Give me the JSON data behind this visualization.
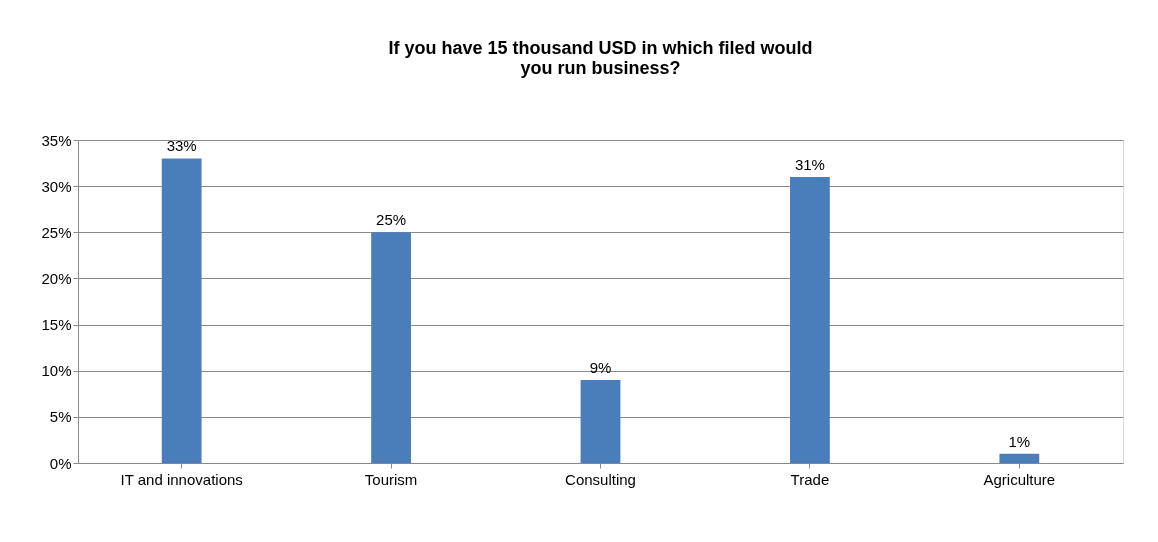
{
  "chart_data": {
    "type": "bar",
    "title": [
      "If you have 15 thousand USD in which filed would",
      "you run business?"
    ],
    "categories": [
      "IT and innovations",
      "Tourism",
      "Consulting",
      "Trade",
      "Agriculture"
    ],
    "values": [
      33,
      25,
      9,
      31,
      1
    ],
    "value_labels": [
      "33%",
      "25%",
      "9%",
      "31%",
      "1%"
    ],
    "color": "#4a7ebb",
    "ylim": [
      0,
      35
    ],
    "yticks": [
      {
        "value": 0,
        "label": "0%"
      },
      {
        "value": 5,
        "label": "5%"
      },
      {
        "value": 10,
        "label": "10%"
      },
      {
        "value": 15,
        "label": "15%"
      },
      {
        "value": 20,
        "label": "20%"
      },
      {
        "value": 25,
        "label": "25%"
      },
      {
        "value": 30,
        "label": "30%"
      },
      {
        "value": 35,
        "label": "35%"
      }
    ],
    "grid": "y"
  }
}
